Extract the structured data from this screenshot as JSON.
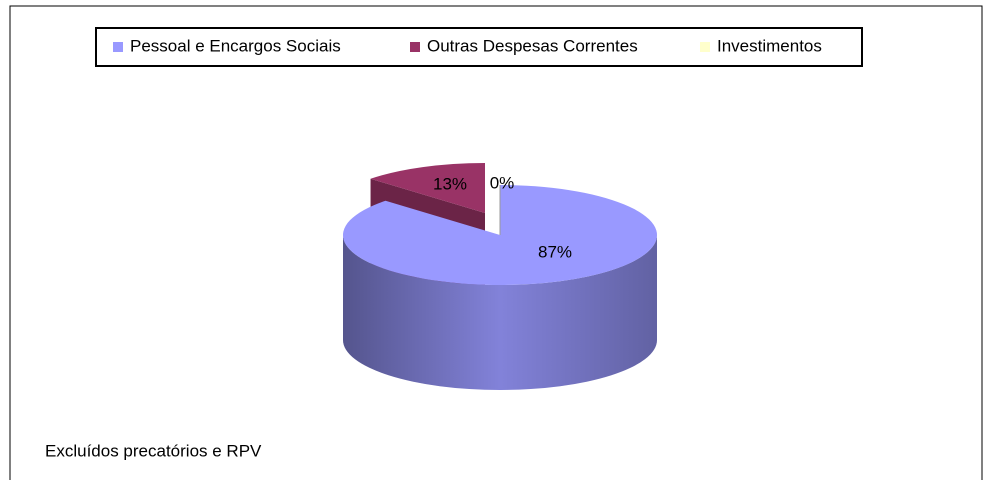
{
  "chart_data": {
    "type": "pie3d",
    "categories": [
      "Pessoal e Encargos Sociais",
      "Outras Despesas Correntes",
      "Investimentos"
    ],
    "values": [
      87,
      13,
      0
    ],
    "value_labels": [
      "87%",
      "13%",
      "0%"
    ],
    "colors": [
      "#9999ff",
      "#993366",
      "#ffffcc"
    ],
    "legend": "top",
    "annotation": "Excluídos precatórios e RPV"
  }
}
